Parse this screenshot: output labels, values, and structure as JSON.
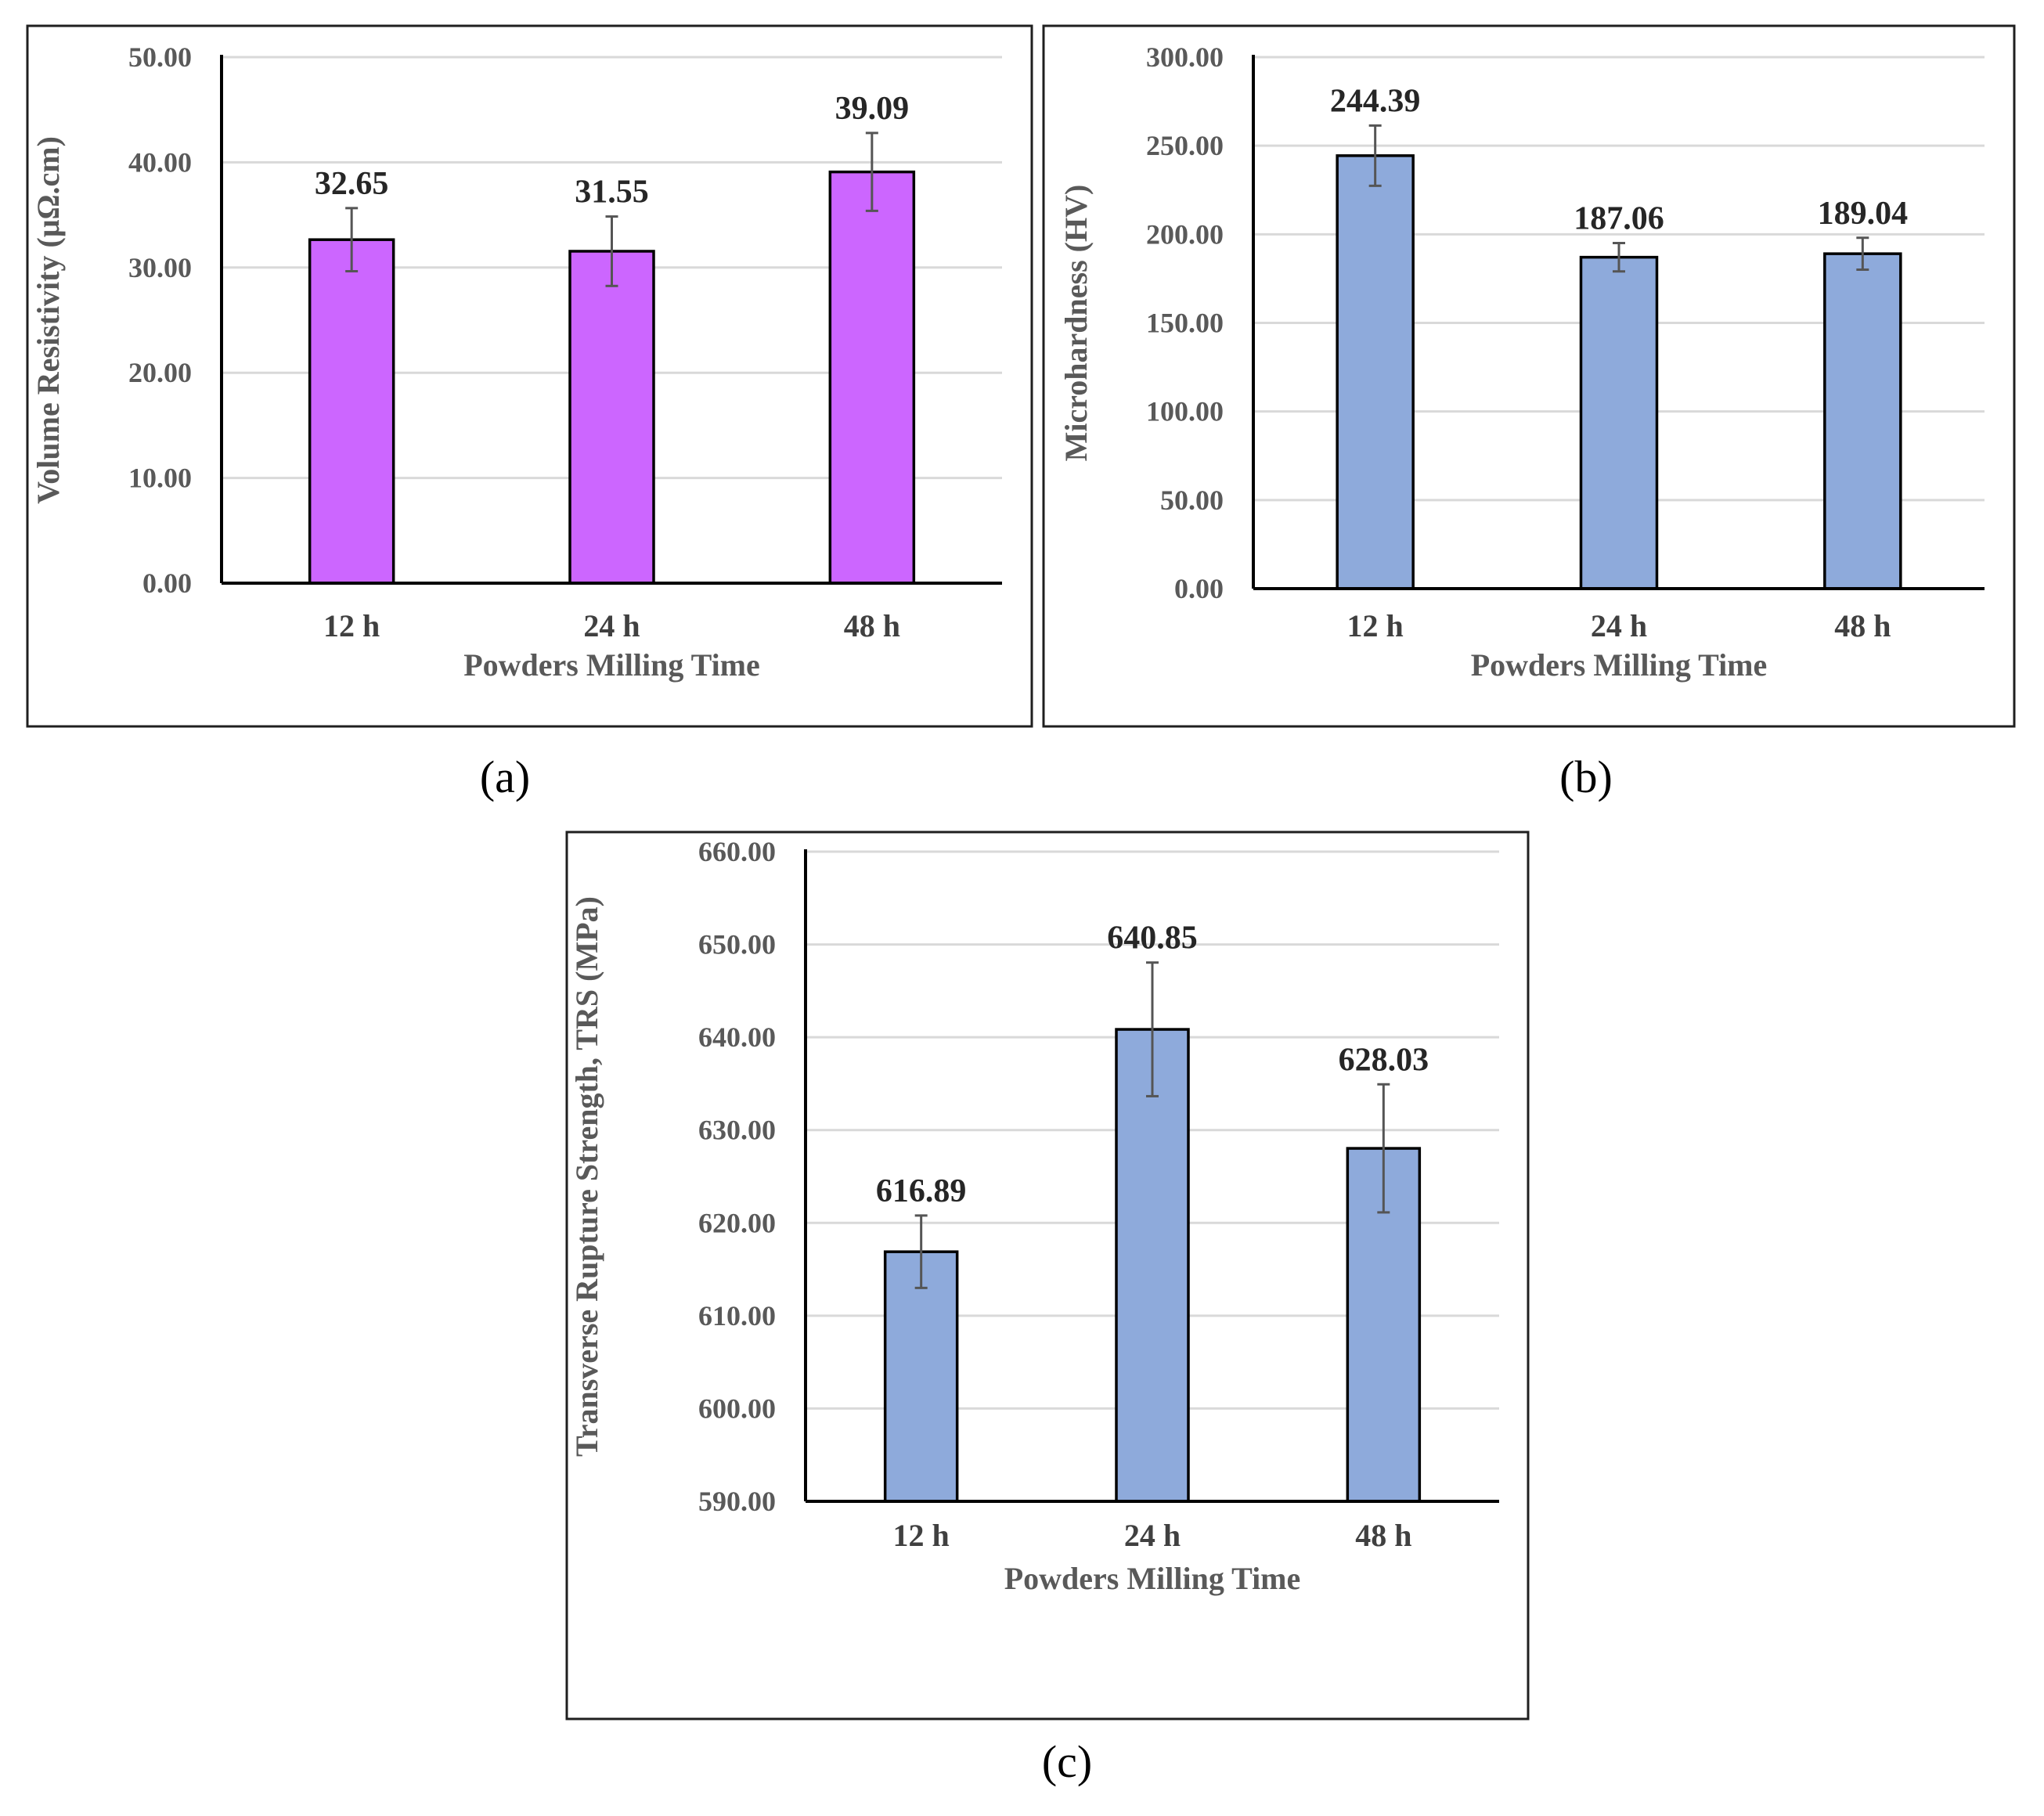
{
  "chart_data": [
    {
      "type": "bar",
      "panel_label": "(a)",
      "categories": [
        "12 h",
        "24 h",
        "48 h"
      ],
      "values": [
        32.65,
        31.55,
        39.09
      ],
      "value_labels": [
        "32.65",
        "31.55",
        "39.09"
      ],
      "error": [
        3.0,
        3.3,
        3.7
      ],
      "xlabel": "Powders  Milling Time",
      "ylabel": "Volume Resistivity (μΩ.cm)",
      "ylim": [
        0,
        50
      ],
      "yticks": [
        0,
        10,
        20,
        30,
        40,
        50
      ],
      "ytick_labels": [
        "0.00",
        "10.00",
        "20.00",
        "30.00",
        "40.00",
        "50.00"
      ],
      "bar_color": "#cc66ff",
      "grid": true
    },
    {
      "type": "bar",
      "panel_label": "(b)",
      "categories": [
        "12 h",
        "24 h",
        "48 h"
      ],
      "values": [
        244.39,
        187.06,
        189.04
      ],
      "value_labels": [
        "244.39",
        "187.06",
        "189.04"
      ],
      "error": [
        17,
        8,
        9
      ],
      "xlabel": "Powders Milling Time",
      "ylabel": "Microhardness (HV)",
      "ylim": [
        0,
        300
      ],
      "yticks": [
        0,
        50,
        100,
        150,
        200,
        250,
        300
      ],
      "ytick_labels": [
        "0.00",
        "50.00",
        "100.00",
        "150.00",
        "200.00",
        "250.00",
        "300.00"
      ],
      "bar_color": "#8eaadb",
      "grid": true
    },
    {
      "type": "bar",
      "panel_label": "(c)",
      "categories": [
        "12 h",
        "24 h",
        "48 h"
      ],
      "values": [
        616.89,
        640.85,
        628.03
      ],
      "value_labels": [
        "616.89",
        "640.85",
        "628.03"
      ],
      "error": [
        3.9,
        7.2,
        6.9
      ],
      "xlabel": "Powders Milling Time",
      "ylabel": "Transverse Rupture Strength, TRS (MPa)",
      "ylim": [
        590,
        660
      ],
      "yticks": [
        590,
        600,
        610,
        620,
        630,
        640,
        650,
        660
      ],
      "ytick_labels": [
        "590.00",
        "600.00",
        "610.00",
        "620.00",
        "630.00",
        "640.00",
        "650.00",
        "660.00"
      ],
      "bar_color": "#8eaadb",
      "grid": true
    }
  ]
}
